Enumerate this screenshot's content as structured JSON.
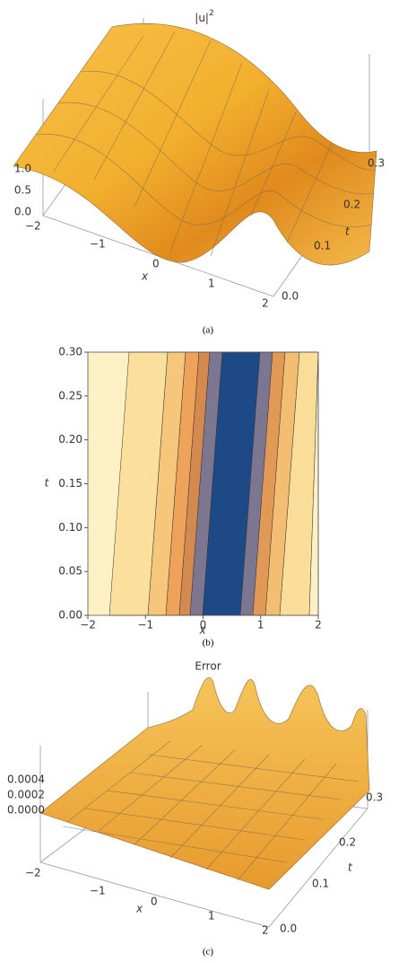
{
  "panels": [
    {
      "title": "|u|",
      "title_power": "2",
      "z_ticks": [
        "0.0",
        "0.5",
        "1.0"
      ],
      "x_ticks": [
        "−2",
        "−1",
        "0",
        "1",
        "2"
      ],
      "t_ticks": [
        "0.0",
        "0.1",
        "0.2",
        "0.3"
      ],
      "x_label": "x",
      "t_label": "t",
      "caption": "(a)"
    },
    {
      "chart_data": {
        "type": "contour",
        "xlim": [
          -2,
          2
        ],
        "ylim": [
          0,
          0.3
        ],
        "xticks": [
          {
            "value": -2,
            "label": "−2"
          },
          {
            "value": -1,
            "label": "−1"
          },
          0,
          1,
          2
        ],
        "yticks": [
          {
            "value": 0,
            "label": "0.00"
          },
          0.05,
          {
            "value": 0.1,
            "label": "0.10"
          },
          0.15,
          {
            "value": 0.2,
            "label": "0.20"
          },
          0.25,
          {
            "value": 0.3,
            "label": "0.30"
          }
        ],
        "x_label": "x",
        "y_label": "t"
      },
      "caption": "(b)"
    },
    {
      "title": "Error",
      "z_ticks": [
        "0.0000",
        "0.0002",
        "0.0004"
      ],
      "x_ticks": [
        "−2",
        "−1",
        "0",
        "1",
        "2"
      ],
      "t_ticks": [
        "0.0",
        "0.1",
        "0.2",
        "0.3"
      ],
      "x_label": "x",
      "t_label": "t",
      "caption": "(c)"
    }
  ]
}
